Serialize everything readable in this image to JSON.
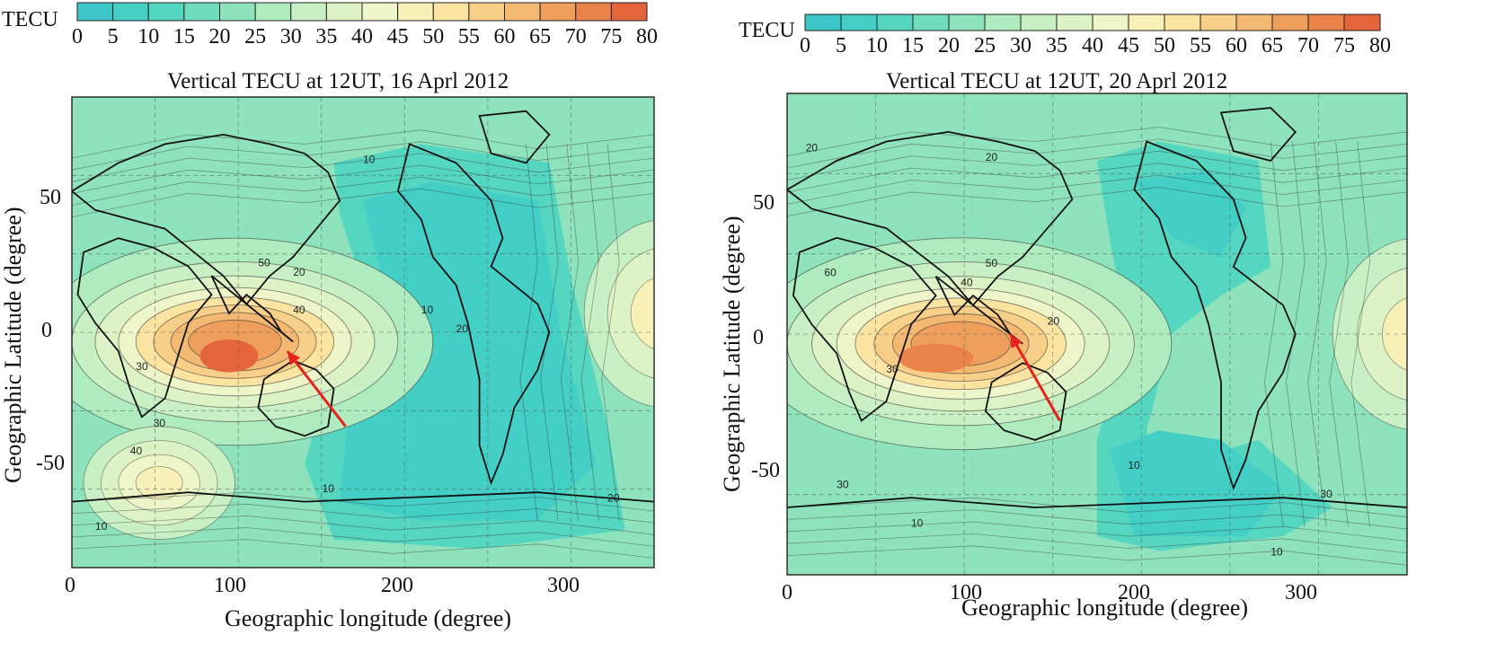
{
  "colorbar": {
    "label": "TECU",
    "ticks": [
      "0",
      "5",
      "10",
      "15",
      "20",
      "25",
      "30",
      "35",
      "40",
      "45",
      "50",
      "55",
      "60",
      "65",
      "70",
      "75",
      "80"
    ],
    "colors": [
      "#3cc6c8",
      "#43cec6",
      "#55d6c0",
      "#6fdcbc",
      "#8ee3bc",
      "#aeebbf",
      "#c8f0c4",
      "#ddf3c6",
      "#eef5c8",
      "#f7f1b8",
      "#fbe4a2",
      "#f8cf88",
      "#f3b872",
      "#ee9f5c",
      "#e9834a",
      "#e4643c"
    ]
  },
  "maps": [
    {
      "title": "Vertical TECU at 12UT, 16 Aprl 2012",
      "xlabel": "Geographic longitude (degree)",
      "ylabel": "Geographic Latitude (degree)",
      "xticks": [
        "0",
        "100",
        "200",
        "300"
      ],
      "yticks": [
        "50",
        "0",
        "-50"
      ],
      "contour_labels": [
        "10",
        "10",
        "10",
        "20",
        "20",
        "30",
        "30",
        "40",
        "40",
        "50",
        "20",
        "10"
      ],
      "arrow_color": "#e8201e"
    },
    {
      "title": "Vertical TECU at 12UT, 20 Aprl 2012",
      "xlabel": "Geographic longitude (degree)",
      "ylabel": "Geographic Latitude (degree)",
      "xticks": [
        "0",
        "100",
        "200",
        "300"
      ],
      "yticks": [
        "50",
        "0",
        "-50"
      ],
      "contour_labels": [
        "20",
        "20",
        "20",
        "30",
        "40",
        "50",
        "60",
        "10",
        "10",
        "10",
        "30",
        "30"
      ],
      "arrow_color": "#e8201e"
    }
  ]
}
